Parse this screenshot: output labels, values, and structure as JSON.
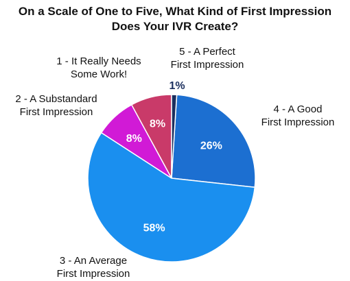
{
  "chart_data": {
    "type": "pie",
    "title": "On a Scale of One to Five, What Kind of First Impression Does Your IVR Create?",
    "title_lines": [
      "On a Scale of One to Five, What Kind of First Impression",
      "Does Your IVR Create?"
    ],
    "slices": [
      {
        "label": "4 - A Good First Impression",
        "label_lines": [
          "4 - A Good",
          "First Impression"
        ],
        "value": 26,
        "value_label": "26%",
        "color": "#1c6fd1",
        "value_label_color": "#ffffff"
      },
      {
        "label": "3 - An Average First Impression",
        "label_lines": [
          "3 - An Average",
          "First Impression"
        ],
        "value": 58,
        "value_label": "58%",
        "color": "#1a8fef",
        "value_label_color": "#ffffff"
      },
      {
        "label": "2 - A Substandard First Impression",
        "label_lines": [
          "2 - A Substandard",
          "First Impression"
        ],
        "value": 8,
        "value_label": "8%",
        "color": "#d11ad6",
        "value_label_color": "#ffffff"
      },
      {
        "label": "1 - It Really Needs Some Work!",
        "label_lines": [
          "1 - It Really Needs",
          "Some Work!"
        ],
        "value": 8,
        "value_label": "8%",
        "color": "#c93a69",
        "value_label_color": "#ffffff"
      },
      {
        "label": "5 - A Perfect First Impression",
        "label_lines": [
          "5 - A Perfect",
          "First Impression"
        ],
        "value": 1,
        "value_label": "1%",
        "color": "#1b2f5e",
        "value_label_color": "#1b2f5e"
      }
    ],
    "start": "12 o'clock",
    "direction": "clockwise"
  }
}
